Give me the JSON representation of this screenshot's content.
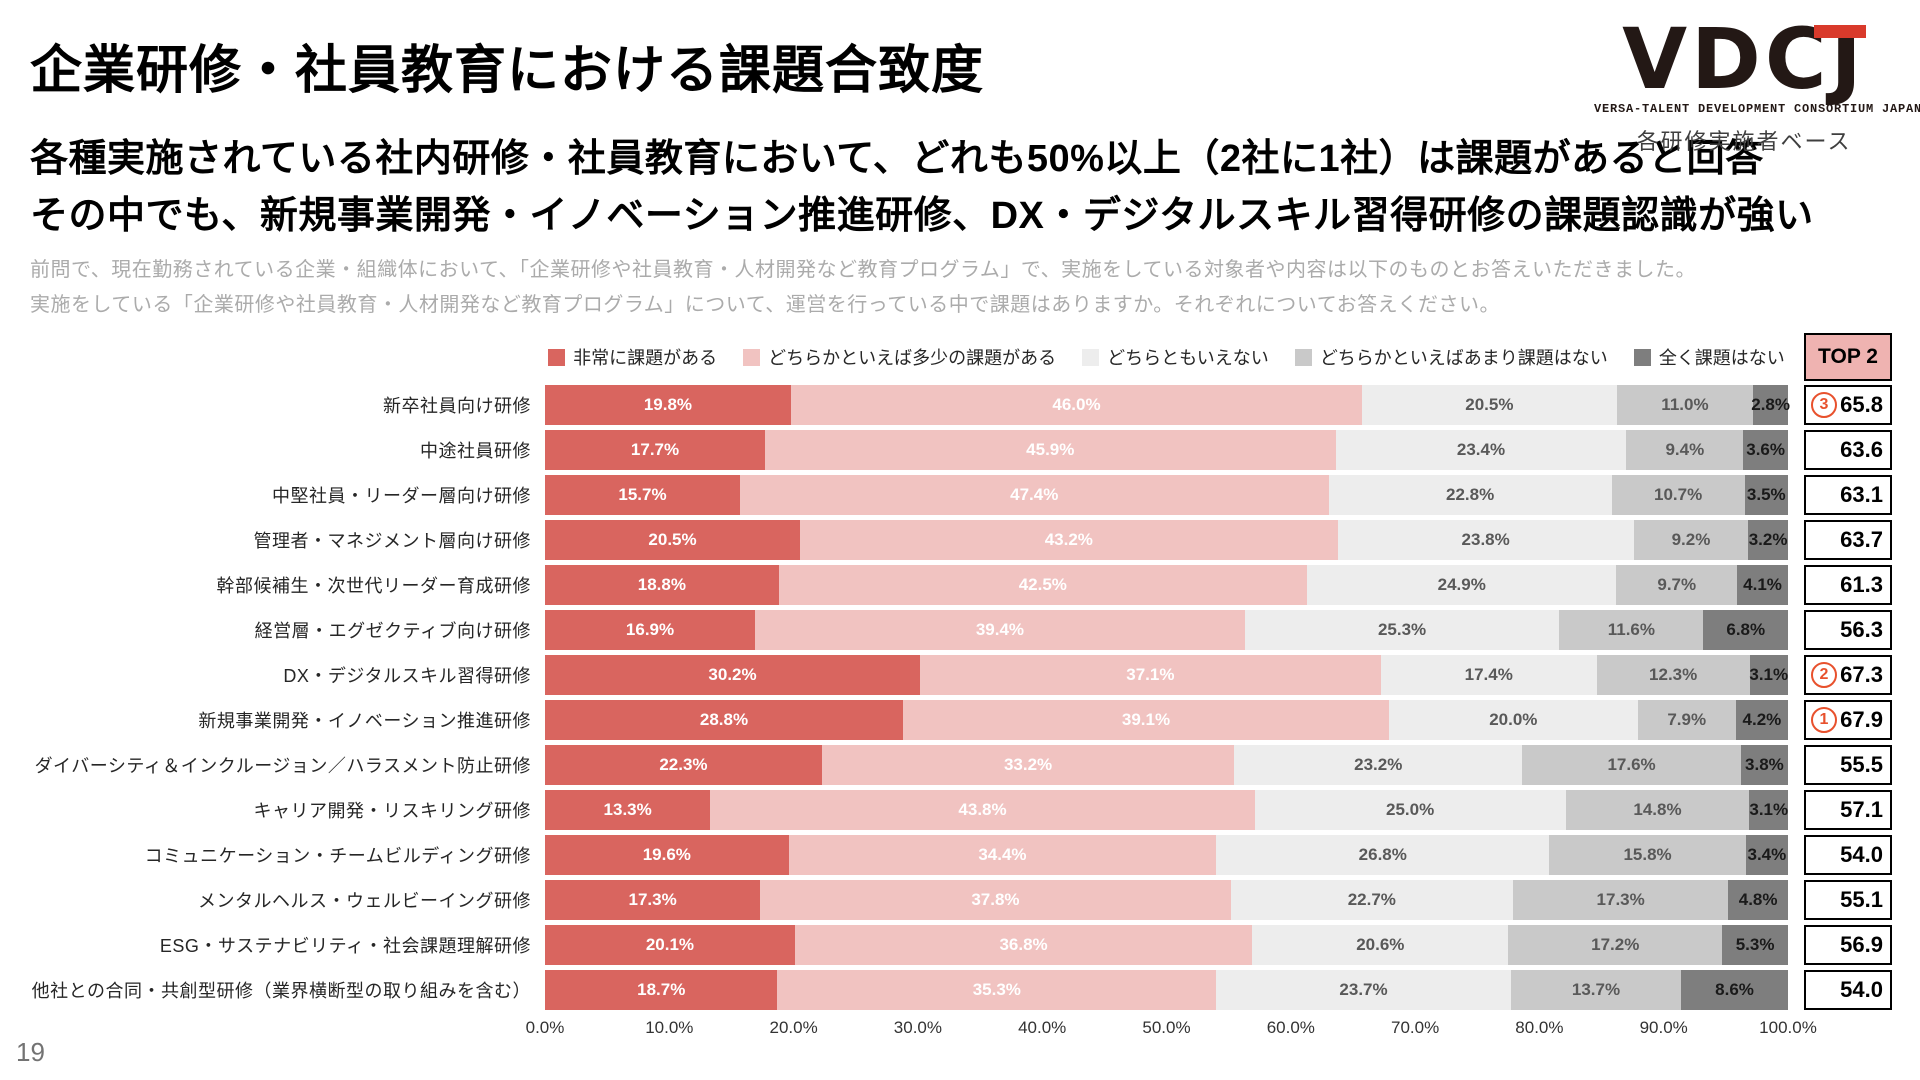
{
  "slide": {
    "title": "企業研修・社員教育における課題合致度",
    "page_number": "19"
  },
  "logo": {
    "text": "VDCJ",
    "subtitle": "VERSA-TALENT DEVELOPMENT CONSORTIUM JAPAN",
    "base_note": "各研修実施者ベース",
    "accent_color": "#d93a2b"
  },
  "headline": {
    "line1": "各種実施されている社内研修・社員教育において、どれも50%以上（2社に1社）は課題があると回答",
    "line2": "その中でも、新規事業開発・イノベーション推進研修、DX・デジタルスキル習得研修の課題認識が強い"
  },
  "description": {
    "line1": "前問で、現在勤務されている企業・組織体において、「企業研修や社員教育・人材開発など教育プログラム」で、実施をしている対象者や内容は以下のものとお答えいただきました。",
    "line2": "実施をしている「企業研修や社員教育・人材開発など教育プログラム」について、運営を行っている中で課題はありますか。それぞれについてお答えください。"
  },
  "chart_data": {
    "type": "bar",
    "stacked": true,
    "orientation": "horizontal",
    "x_range": [
      0,
      100
    ],
    "grid": false,
    "legend_position": "top",
    "legend": [
      {
        "label": "非常に課題がある",
        "color": "#d9655f",
        "text_color": "#ffffff"
      },
      {
        "label": "どちらかといえば多少の課題がある",
        "color": "#f1c3c1",
        "text_color": "#ffffff"
      },
      {
        "label": "どちらともいえない",
        "color": "#ededed",
        "text_color": "#595959"
      },
      {
        "label": "どちらかといえばあまり課題はない",
        "color": "#c9c9c9",
        "text_color": "#595959"
      },
      {
        "label": "全く課題はない",
        "color": "#7e7e7e",
        "text_color": "#1a1a1a"
      }
    ],
    "x_ticks": [
      "0.0%",
      "10.0%",
      "20.0%",
      "30.0%",
      "40.0%",
      "50.0%",
      "60.0%",
      "70.0%",
      "80.0%",
      "90.0%",
      "100.0%"
    ],
    "top2_header": "TOP 2",
    "top2_header_bg": "#efb3b1",
    "rank_color": "#e8512d",
    "rows": [
      {
        "label": "新卒社員向け研修",
        "values": [
          19.8,
          46.0,
          20.5,
          11.0,
          2.8
        ],
        "top2": "65.8",
        "rank": 3
      },
      {
        "label": "中途社員研修",
        "values": [
          17.7,
          45.9,
          23.4,
          9.4,
          3.6
        ],
        "top2": "63.6",
        "rank": null
      },
      {
        "label": "中堅社員・リーダー層向け研修",
        "values": [
          15.7,
          47.4,
          22.8,
          10.7,
          3.5
        ],
        "top2": "63.1",
        "rank": null
      },
      {
        "label": "管理者・マネジメント層向け研修",
        "values": [
          20.5,
          43.2,
          23.8,
          9.2,
          3.2
        ],
        "top2": "63.7",
        "rank": null
      },
      {
        "label": "幹部候補生・次世代リーダー育成研修",
        "values": [
          18.8,
          42.5,
          24.9,
          9.7,
          4.1
        ],
        "top2": "61.3",
        "rank": null
      },
      {
        "label": "経営層・エグゼクティブ向け研修",
        "values": [
          16.9,
          39.4,
          25.3,
          11.6,
          6.8
        ],
        "top2": "56.3",
        "rank": null
      },
      {
        "label": "DX・デジタルスキル習得研修",
        "values": [
          30.2,
          37.1,
          17.4,
          12.3,
          3.1
        ],
        "top2": "67.3",
        "rank": 2
      },
      {
        "label": "新規事業開発・イノベーション推進研修",
        "values": [
          28.8,
          39.1,
          20.0,
          7.9,
          4.2
        ],
        "top2": "67.9",
        "rank": 1
      },
      {
        "label": "ダイバーシティ＆インクルージョン／ハラスメント防止研修",
        "values": [
          22.3,
          33.2,
          23.2,
          17.6,
          3.8
        ],
        "top2": "55.5",
        "rank": null
      },
      {
        "label": "キャリア開発・リスキリング研修",
        "values": [
          13.3,
          43.8,
          25.0,
          14.8,
          3.1
        ],
        "top2": "57.1",
        "rank": null
      },
      {
        "label": "コミュニケーション・チームビルディング研修",
        "values": [
          19.6,
          34.4,
          26.8,
          15.8,
          3.4
        ],
        "top2": "54.0",
        "rank": null
      },
      {
        "label": "メンタルヘルス・ウェルビーイング研修",
        "values": [
          17.3,
          37.8,
          22.7,
          17.3,
          4.8
        ],
        "top2": "55.1",
        "rank": null
      },
      {
        "label": "ESG・サステナビリティ・社会課題理解研修",
        "values": [
          20.1,
          36.8,
          20.6,
          17.2,
          5.3
        ],
        "top2": "56.9",
        "rank": null
      },
      {
        "label": "他社との合同・共創型研修（業界横断型の取り組みを含む）",
        "values": [
          18.7,
          35.3,
          23.7,
          13.7,
          8.6
        ],
        "top2": "54.0",
        "rank": null
      }
    ]
  }
}
